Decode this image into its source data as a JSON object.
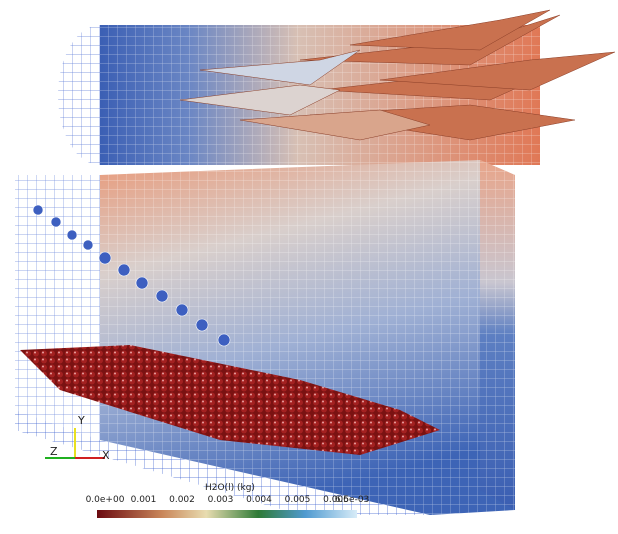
{
  "axes_triad": {
    "y": "Y",
    "z": "Z",
    "x": "X"
  },
  "colorbar": {
    "title": "H2O(l) (kg)",
    "labels": [
      "0.0e+00",
      "0.001",
      "0.002",
      "0.003",
      "0.004",
      "0.005",
      "0.006",
      "6.5e-03"
    ]
  }
}
